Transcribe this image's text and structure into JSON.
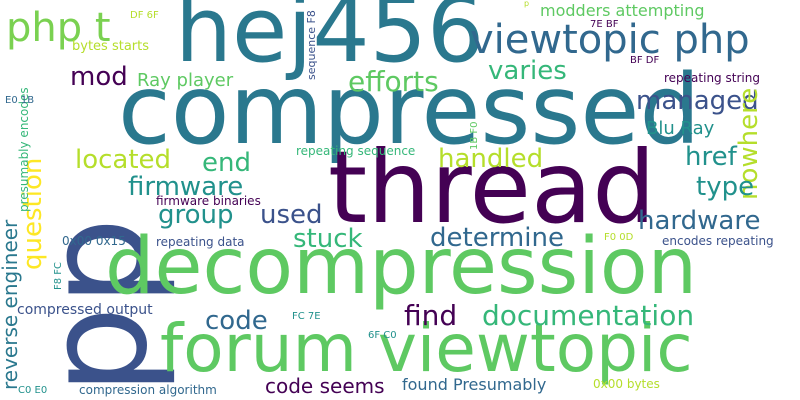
{
  "palette": {
    "navy": "#3b528b",
    "purple": "#440154",
    "teal": "#2a788e",
    "teal_light": "#21918c",
    "green": "#5ec962",
    "green_bright": "#7ad151",
    "lime": "#b5de2b",
    "yellow": "#fde725",
    "mint": "#35b779",
    "blue_dark": "#31688e"
  },
  "words": [
    {
      "text": "pp",
      "color": "#3b528b"
    },
    {
      "text": "compressed",
      "color": "#2a788e"
    },
    {
      "text": "hej456",
      "color": "#2a788e"
    },
    {
      "text": "thread",
      "color": "#440154"
    },
    {
      "text": "decompression",
      "color": "#5ec962"
    },
    {
      "text": "forum viewtopic",
      "color": "#5ec962"
    },
    {
      "text": "viewtopic php",
      "color": "#31688e"
    },
    {
      "text": "php t",
      "color": "#7ad151"
    },
    {
      "text": "mod",
      "color": "#440154"
    },
    {
      "text": "efforts",
      "color": "#5ec962"
    },
    {
      "text": "varies",
      "color": "#35b779"
    },
    {
      "text": "managed",
      "color": "#3b528b"
    },
    {
      "text": "nowhere",
      "color": "#b5de2b"
    },
    {
      "text": "Ray player",
      "color": "#5ec962"
    },
    {
      "text": "Blu Ray",
      "color": "#21918c"
    },
    {
      "text": "question",
      "color": "#fde725"
    },
    {
      "text": "located",
      "color": "#b5de2b"
    },
    {
      "text": "end",
      "color": "#35b779"
    },
    {
      "text": "handled",
      "color": "#b5de2b"
    },
    {
      "text": "href",
      "color": "#21918c"
    },
    {
      "text": "firmware",
      "color": "#21918c"
    },
    {
      "text": "type",
      "color": "#21918c"
    },
    {
      "text": "group",
      "color": "#21918c"
    },
    {
      "text": "used",
      "color": "#3b528b"
    },
    {
      "text": "hardware",
      "color": "#31688e"
    },
    {
      "text": "stuck",
      "color": "#35b779"
    },
    {
      "text": "determine",
      "color": "#31688e"
    },
    {
      "text": "reverse engineer",
      "color": "#2a788e"
    },
    {
      "text": "code",
      "color": "#31688e"
    },
    {
      "text": "find",
      "color": "#440154"
    },
    {
      "text": "documentation",
      "color": "#35b779"
    },
    {
      "text": "code seems",
      "color": "#440154"
    },
    {
      "text": "found Presumably",
      "color": "#31688e"
    },
    {
      "text": "modders attempting",
      "color": "#5ec962"
    },
    {
      "text": "bytes starts",
      "color": "#b5de2b"
    },
    {
      "text": "firmware binaries",
      "color": "#440154"
    },
    {
      "text": "repeating sequence",
      "color": "#35b779"
    },
    {
      "text": "repeating string",
      "color": "#440154"
    },
    {
      "text": "repeating data",
      "color": "#3b528b"
    },
    {
      "text": "encodes repeating",
      "color": "#3b528b"
    },
    {
      "text": "compressed output",
      "color": "#3b528b"
    },
    {
      "text": "compression algorithm",
      "color": "#31688e"
    },
    {
      "text": "0x00 0x15",
      "color": "#31688e"
    },
    {
      "text": "0x00 bytes",
      "color": "#b5de2b"
    },
    {
      "text": "presumably encodes",
      "color": "#35b779"
    },
    {
      "text": "sequence F8",
      "color": "#3b528b"
    },
    {
      "text": "DF 6F",
      "color": "#b5de2b"
    },
    {
      "text": "7E BF",
      "color": "#440154"
    },
    {
      "text": "BF DF",
      "color": "#440154"
    },
    {
      "text": "E0 1B",
      "color": "#31688e"
    },
    {
      "text": "1B F0",
      "color": "#5ec962"
    },
    {
      "text": "F0 0D",
      "color": "#b5de2b"
    },
    {
      "text": "F8 FC",
      "color": "#21918c"
    },
    {
      "text": "FC 7E",
      "color": "#21918c"
    },
    {
      "text": "6F C0",
      "color": "#21918c"
    },
    {
      "text": "C0 E0",
      "color": "#21918c"
    },
    {
      "text": "p",
      "color": "#b5de2b"
    }
  ]
}
